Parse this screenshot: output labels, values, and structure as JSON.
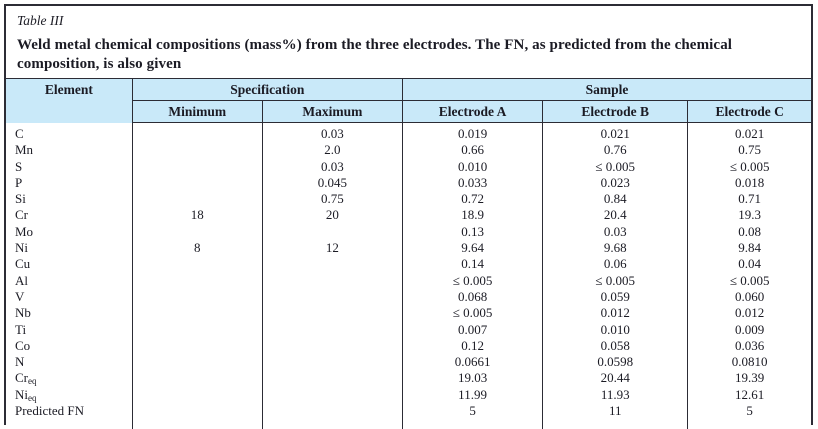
{
  "caption": {
    "label": "Table III",
    "title": "Weld metal chemical compositions (mass%) from the three electrodes. The FN, as predicted from the chemical composition, is also given"
  },
  "header": {
    "element": "Element",
    "specification": "Specification",
    "sample": "Sample",
    "minimum": "Minimum",
    "maximum": "Maximum",
    "electrode_a": "Electrode A",
    "electrode_b": "Electrode B",
    "electrode_c": "Electrode C"
  },
  "rows": [
    {
      "element": "C",
      "element_sub": "",
      "min": "",
      "max": "0.03",
      "a": "0.019",
      "b": "0.021",
      "c": "0.021"
    },
    {
      "element": "Mn",
      "element_sub": "",
      "min": "",
      "max": "2.0",
      "a": "0.66",
      "b": "0.76",
      "c": "0.75"
    },
    {
      "element": "S",
      "element_sub": "",
      "min": "",
      "max": "0.03",
      "a": "0.010",
      "b": "≤ 0.005",
      "c": "≤ 0.005"
    },
    {
      "element": "P",
      "element_sub": "",
      "min": "",
      "max": "0.045",
      "a": "0.033",
      "b": "0.023",
      "c": "0.018"
    },
    {
      "element": "Si",
      "element_sub": "",
      "min": "",
      "max": "0.75",
      "a": "0.72",
      "b": "0.84",
      "c": "0.71"
    },
    {
      "element": "Cr",
      "element_sub": "",
      "min": "18",
      "max": "20",
      "a": "18.9",
      "b": "20.4",
      "c": "19.3"
    },
    {
      "element": "Mo",
      "element_sub": "",
      "min": "",
      "max": "",
      "a": "0.13",
      "b": "0.03",
      "c": "0.08"
    },
    {
      "element": "Ni",
      "element_sub": "",
      "min": "8",
      "max": "12",
      "a": "9.64",
      "b": "9.68",
      "c": "9.84"
    },
    {
      "element": "Cu",
      "element_sub": "",
      "min": "",
      "max": "",
      "a": "0.14",
      "b": "0.06",
      "c": "0.04"
    },
    {
      "element": "Al",
      "element_sub": "",
      "min": "",
      "max": "",
      "a": "≤ 0.005",
      "b": "≤ 0.005",
      "c": "≤ 0.005"
    },
    {
      "element": "V",
      "element_sub": "",
      "min": "",
      "max": "",
      "a": "0.068",
      "b": "0.059",
      "c": "0.060"
    },
    {
      "element": "Nb",
      "element_sub": "",
      "min": "",
      "max": "",
      "a": "≤ 0.005",
      "b": "0.012",
      "c": "0.012"
    },
    {
      "element": "Ti",
      "element_sub": "",
      "min": "",
      "max": "",
      "a": "0.007",
      "b": "0.010",
      "c": "0.009"
    },
    {
      "element": "Co",
      "element_sub": "",
      "min": "",
      "max": "",
      "a": "0.12",
      "b": "0.058",
      "c": "0.036"
    },
    {
      "element": "N",
      "element_sub": "",
      "min": "",
      "max": "",
      "a": "0.0661",
      "b": "0.0598",
      "c": "0.0810"
    },
    {
      "element": "Cr",
      "element_sub": "eq",
      "min": "",
      "max": "",
      "a": "19.03",
      "b": "20.44",
      "c": "19.39"
    },
    {
      "element": "Ni",
      "element_sub": "eq",
      "min": "",
      "max": "",
      "a": "11.99",
      "b": "11.93",
      "c": "12.61"
    },
    {
      "element": "Predicted FN",
      "element_sub": "",
      "min": "",
      "max": "",
      "a": "5",
      "b": "11",
      "c": "5"
    }
  ],
  "colors": {
    "header_bg": "#c9e9f9",
    "border": "#2c2c35",
    "text": "#1b1b24"
  }
}
